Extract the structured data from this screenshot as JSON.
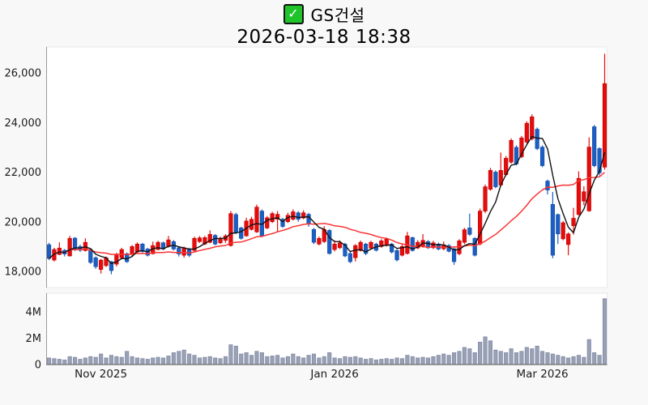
{
  "header": {
    "checkbox_checked": true,
    "check_glyph": "✓",
    "title": "GS건설",
    "datetime": "2026-03-18 18:38"
  },
  "colors": {
    "up": "#e60c0c",
    "up_edge": "#c00000",
    "down": "#1c5fc4",
    "down_edge": "#134a9e",
    "ma_short": "#111111",
    "ma_long": "#f93535",
    "volume_bar": "#99a1b6",
    "volume_bar_edge": "#7e87a0",
    "axis_line": "#9b9b9b",
    "baseline": "#7f7f7f",
    "panel_border": "#e9e9e9",
    "panel_bg": "#ffffff",
    "page_bg": "#f8f8f8",
    "label": "#1b1b1b",
    "checkbox_green": "#1fc32a"
  },
  "chart_data": {
    "type": "candlestick+volume",
    "title": "GS건설",
    "datetime": "2026-03-18 18:38",
    "legend_position": "none",
    "grid": false,
    "y_axis": {
      "tick_labels": [
        "26,000",
        "24,000",
        "22,000",
        "20,000",
        "18,000"
      ],
      "tick_values": [
        26000,
        24000,
        22000,
        20000,
        18000
      ],
      "range": [
        17350,
        26915
      ]
    },
    "volume_axis": {
      "tick_labels": [
        "4M",
        "2M",
        "0"
      ],
      "tick_values": [
        4000000,
        2000000,
        0
      ],
      "range": [
        0,
        5400000
      ]
    },
    "x_axis": {
      "labels": [
        {
          "text": "Nov 2025",
          "index": 10
        },
        {
          "text": "Jan 2026",
          "index": 55
        },
        {
          "text": "Mar 2026",
          "index": 95
        }
      ]
    },
    "moving_averages": [
      {
        "name": "ma-short",
        "window": 5,
        "color_ref": "ma_short"
      },
      {
        "name": "ma-long",
        "window": 20,
        "color_ref": "ma_long"
      }
    ],
    "ohlc": [
      [
        19075,
        19150,
        18450,
        18520
      ],
      [
        18455,
        18950,
        18400,
        18880
      ],
      [
        18680,
        19170,
        18650,
        18940
      ],
      [
        18850,
        18900,
        18600,
        18700
      ],
      [
        18620,
        19430,
        18600,
        19330
      ],
      [
        19340,
        19380,
        18820,
        18880
      ],
      [
        19000,
        19080,
        18780,
        18850
      ],
      [
        18840,
        19330,
        18800,
        19170
      ],
      [
        18880,
        18920,
        18300,
        18360
      ],
      [
        18550,
        18600,
        18100,
        18190
      ],
      [
        18075,
        18500,
        17910,
        18455
      ],
      [
        18230,
        18600,
        18180,
        18550
      ],
      [
        18390,
        18420,
        17880,
        18030
      ],
      [
        18290,
        18750,
        18200,
        18680
      ],
      [
        18550,
        18950,
        18500,
        18880
      ],
      [
        18710,
        18760,
        18340,
        18390
      ],
      [
        18680,
        19060,
        18620,
        19000
      ],
      [
        18780,
        19170,
        18740,
        19100
      ],
      [
        19100,
        19150,
        18750,
        18800
      ],
      [
        18900,
        18950,
        18600,
        18650
      ],
      [
        18710,
        19200,
        18680,
        19040
      ],
      [
        18880,
        19230,
        18850,
        19170
      ],
      [
        19150,
        19200,
        18850,
        18900
      ],
      [
        19000,
        19430,
        18960,
        19270
      ],
      [
        19200,
        19260,
        18840,
        18900
      ],
      [
        18950,
        19000,
        18600,
        18700
      ],
      [
        18650,
        19000,
        18550,
        18950
      ],
      [
        18900,
        18950,
        18580,
        18650
      ],
      [
        18840,
        19400,
        18800,
        19330
      ],
      [
        19200,
        19420,
        19150,
        19350
      ],
      [
        19100,
        19430,
        19060,
        19360
      ],
      [
        19170,
        19650,
        19130,
        19490
      ],
      [
        19450,
        19500,
        19050,
        19100
      ],
      [
        19150,
        19400,
        19100,
        19330
      ],
      [
        19250,
        19500,
        19150,
        19430
      ],
      [
        19040,
        20430,
        19000,
        20330
      ],
      [
        20290,
        20360,
        19500,
        19570
      ],
      [
        19750,
        19800,
        19280,
        19330
      ],
      [
        19430,
        20160,
        19400,
        20030
      ],
      [
        19690,
        20200,
        19650,
        20100
      ],
      [
        19590,
        20690,
        19550,
        20590
      ],
      [
        20430,
        20500,
        19380,
        19430
      ],
      [
        19750,
        20230,
        19700,
        20160
      ],
      [
        20000,
        20400,
        19950,
        20330
      ],
      [
        20100,
        20430,
        19570,
        20300
      ],
      [
        20100,
        20160,
        19750,
        19810
      ],
      [
        20000,
        20360,
        19950,
        20260
      ],
      [
        20100,
        20500,
        20050,
        20400
      ],
      [
        20360,
        20430,
        20000,
        20100
      ],
      [
        20150,
        20460,
        20100,
        20360
      ],
      [
        20300,
        20360,
        19800,
        19900
      ],
      [
        19690,
        19750,
        19100,
        19170
      ],
      [
        19100,
        19400,
        19050,
        19330
      ],
      [
        19200,
        19820,
        19150,
        19690
      ],
      [
        19650,
        19700,
        18680,
        18720
      ],
      [
        18880,
        19250,
        18800,
        19100
      ],
      [
        18950,
        19250,
        18900,
        19150
      ],
      [
        19100,
        19150,
        18570,
        18620
      ],
      [
        18720,
        18780,
        18330,
        18390
      ],
      [
        18550,
        19100,
        18400,
        19040
      ],
      [
        18840,
        19240,
        18800,
        19170
      ],
      [
        19100,
        19150,
        18650,
        18720
      ],
      [
        18940,
        19230,
        18900,
        19170
      ],
      [
        19100,
        19150,
        18800,
        18850
      ],
      [
        19000,
        19300,
        18950,
        19230
      ],
      [
        19040,
        19360,
        19000,
        19300
      ],
      [
        19100,
        19150,
        18720,
        18780
      ],
      [
        18840,
        18900,
        18400,
        18460
      ],
      [
        18650,
        19080,
        18600,
        19000
      ],
      [
        18720,
        19590,
        18680,
        19430
      ],
      [
        19360,
        19400,
        18800,
        18840
      ],
      [
        18940,
        19260,
        18900,
        19170
      ],
      [
        19000,
        19500,
        18950,
        19250
      ],
      [
        19200,
        19260,
        18900,
        18950
      ],
      [
        18950,
        19230,
        18900,
        19150
      ],
      [
        19100,
        19160,
        18850,
        18900
      ],
      [
        18910,
        19200,
        18850,
        19070
      ],
      [
        19040,
        19100,
        18760,
        18810
      ],
      [
        18910,
        18960,
        18260,
        18390
      ],
      [
        18710,
        19300,
        18650,
        19230
      ],
      [
        19170,
        19750,
        19100,
        19680
      ],
      [
        19750,
        20330,
        19430,
        19490
      ],
      [
        19330,
        19380,
        18600,
        18650
      ],
      [
        19100,
        20530,
        19050,
        20430
      ],
      [
        20430,
        21500,
        20350,
        21410
      ],
      [
        21310,
        22170,
        21250,
        22070
      ],
      [
        22000,
        22070,
        21350,
        21410
      ],
      [
        21480,
        22790,
        21420,
        22070
      ],
      [
        21900,
        22650,
        21840,
        22560
      ],
      [
        22400,
        23360,
        22340,
        23280
      ],
      [
        23000,
        23080,
        22270,
        22330
      ],
      [
        22620,
        23460,
        22560,
        23380
      ],
      [
        23210,
        24050,
        23150,
        23970
      ],
      [
        23340,
        24330,
        23280,
        24230
      ],
      [
        23730,
        23800,
        22890,
        22950
      ],
      [
        23010,
        23080,
        22200,
        22260
      ],
      [
        21640,
        21700,
        21100,
        21280
      ],
      [
        20700,
        21200,
        18530,
        18650
      ],
      [
        20290,
        20330,
        19100,
        19510
      ],
      [
        19310,
        20030,
        19250,
        19960
      ],
      [
        19080,
        19570,
        18650,
        19510
      ],
      [
        19840,
        20560,
        19480,
        20140
      ],
      [
        20290,
        22030,
        20250,
        21750
      ],
      [
        20830,
        21430,
        20670,
        21210
      ],
      [
        20440,
        23400,
        20400,
        23010
      ],
      [
        23830,
        23900,
        22200,
        22260
      ],
      [
        22950,
        23000,
        21870,
        21970
      ],
      [
        22200,
        26770,
        22100,
        25570
      ]
    ],
    "volume": [
      500000,
      450000,
      400000,
      350000,
      600000,
      550000,
      400000,
      500000,
      600000,
      550000,
      800000,
      500000,
      700000,
      600000,
      550000,
      1000000,
      600000,
      500000,
      450000,
      400000,
      500000,
      550000,
      500000,
      650000,
      900000,
      1000000,
      1100000,
      800000,
      700000,
      500000,
      550000,
      600000,
      500000,
      450000,
      600000,
      1500000,
      1400000,
      800000,
      900000,
      700000,
      1000000,
      900000,
      600000,
      650000,
      700000,
      500000,
      600000,
      800000,
      600000,
      500000,
      700000,
      800000,
      500000,
      600000,
      900000,
      500000,
      450000,
      600000,
      550000,
      600000,
      500000,
      400000,
      450000,
      350000,
      400000,
      450000,
      400000,
      500000,
      450000,
      700000,
      600000,
      500000,
      550000,
      500000,
      600000,
      700000,
      800000,
      700000,
      900000,
      1000000,
      1300000,
      1200000,
      900000,
      1700000,
      2100000,
      1800000,
      1100000,
      1000000,
      900000,
      1200000,
      900000,
      1000000,
      1300000,
      1200000,
      1400000,
      1000000,
      900000,
      800000,
      700000,
      600000,
      500000,
      600000,
      700000,
      550000,
      1900000,
      900000,
      700000,
      5000000
    ]
  }
}
